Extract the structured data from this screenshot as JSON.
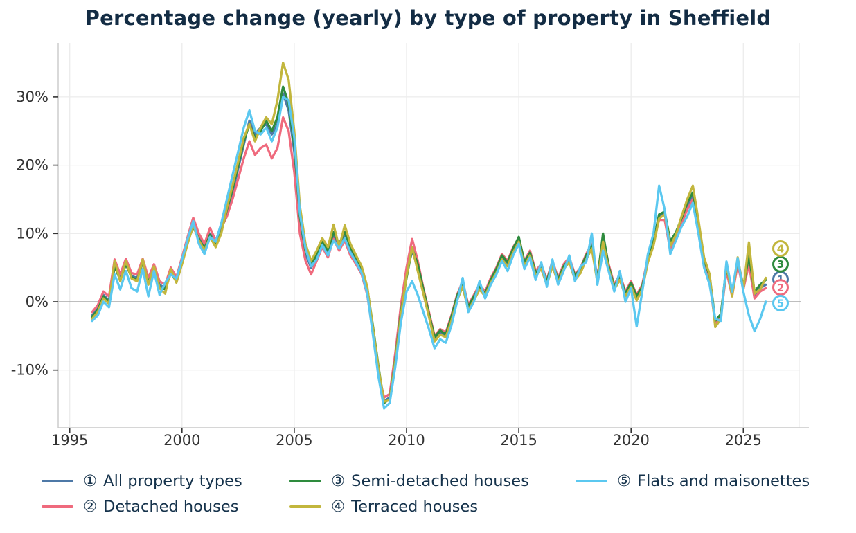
{
  "title": "Percentage change (yearly) by type of property in Sheffield",
  "colors": {
    "title_text": "#132c44",
    "legend_text": "#15324b",
    "tick_text": "#333333",
    "grid": "#ececec",
    "zero_line": "#a8a8a8",
    "spine": "#c9c9c9",
    "tick_mark": "#333333",
    "background": "#ffffff"
  },
  "chart_data": {
    "type": "line",
    "title": "Percentage change (yearly) by type of property in Sheffield",
    "ylabel": "",
    "xlabel": "",
    "unit": "%",
    "grid": "major gridlines only, light gray; darker horizontal line at 0%",
    "legend_position": "bottom",
    "x_start": 1996.0,
    "x_step_years": 0.25,
    "x_end": 2026.0,
    "x_axis": {
      "ticks": [
        1995,
        2000,
        2005,
        2010,
        2015,
        2020,
        2025
      ],
      "range": [
        1994.5,
        2027.6
      ]
    },
    "y_axis": {
      "tick_labels": [
        "30%",
        "20%",
        "10%",
        "0%",
        "-10%"
      ],
      "tick_values": [
        30,
        20,
        10,
        0,
        -10
      ],
      "range": [
        -17.5,
        38
      ]
    },
    "series": [
      {
        "id": "1",
        "glyph": "①",
        "name": "All property types",
        "color": "#4e79a7",
        "end_label_y": 3.3,
        "values": [
          -2.0,
          -1.0,
          1.0,
          0.2,
          5.5,
          3.5,
          5.8,
          3.8,
          3.5,
          6.0,
          3.0,
          5.0,
          2.5,
          2.0,
          4.5,
          3.2,
          6.0,
          9.0,
          11.5,
          9.5,
          8.0,
          10.0,
          8.5,
          10.5,
          13.0,
          16.0,
          19.5,
          23.0,
          26.5,
          24.5,
          25.5,
          26.0,
          24.5,
          26.0,
          30.5,
          28.0,
          22.0,
          12.0,
          7.0,
          5.0,
          6.5,
          8.5,
          7.0,
          9.8,
          8.0,
          9.8,
          7.5,
          6.0,
          4.5,
          1.5,
          -4.0,
          -10.0,
          -14.5,
          -14.0,
          -8.0,
          -1.0,
          4.0,
          7.5,
          5.0,
          1.5,
          -2.0,
          -5.5,
          -4.5,
          -5.0,
          -2.5,
          0.5,
          2.5,
          -1.0,
          0.5,
          2.0,
          1.0,
          3.0,
          4.5,
          6.5,
          5.5,
          7.5,
          9.0,
          5.5,
          7.0,
          4.0,
          5.0,
          2.8,
          5.5,
          3.0,
          5.0,
          6.0,
          3.5,
          4.5,
          6.5,
          8.0,
          3.0,
          9.0,
          5.0,
          2.0,
          3.5,
          1.0,
          2.5,
          0.5,
          2.0,
          6.0,
          8.5,
          12.5,
          13.0,
          8.5,
          10.0,
          12.0,
          14.0,
          15.5,
          11.0,
          6.0,
          3.5,
          -3.0,
          -2.0,
          5.0,
          1.0,
          6.0,
          2.0,
          6.5,
          1.0,
          2.0,
          2.5
        ]
      },
      {
        "id": "2",
        "glyph": "②",
        "name": "Detached houses",
        "color": "#ef6a7d",
        "end_label_y": 2.1,
        "values": [
          -1.5,
          -0.5,
          1.5,
          0.8,
          6.2,
          4.0,
          6.3,
          4.2,
          4.0,
          6.3,
          3.5,
          5.5,
          3.0,
          2.5,
          5.0,
          3.6,
          6.5,
          9.5,
          12.3,
          10.0,
          8.5,
          10.8,
          9.0,
          10.8,
          12.5,
          15.0,
          18.0,
          21.0,
          23.5,
          21.5,
          22.5,
          23.0,
          21.0,
          22.5,
          27.0,
          25.0,
          19.0,
          10.0,
          6.0,
          4.0,
          6.0,
          8.0,
          6.5,
          9.2,
          7.5,
          9.0,
          6.8,
          5.5,
          4.0,
          1.0,
          -4.5,
          -10.5,
          -14.0,
          -13.5,
          -7.5,
          -0.5,
          5.0,
          9.2,
          6.0,
          2.0,
          -1.5,
          -5.0,
          -4.0,
          -4.5,
          -2.0,
          1.0,
          3.0,
          -0.5,
          1.0,
          2.5,
          1.5,
          3.5,
          5.0,
          7.0,
          6.0,
          8.0,
          9.3,
          6.0,
          7.5,
          4.5,
          5.5,
          3.2,
          6.0,
          3.5,
          5.5,
          6.5,
          4.0,
          5.0,
          7.0,
          8.5,
          3.5,
          9.5,
          5.5,
          2.5,
          4.0,
          1.5,
          3.0,
          1.0,
          2.5,
          6.5,
          9.0,
          12.0,
          12.0,
          7.5,
          9.5,
          11.5,
          13.5,
          15.0,
          10.5,
          5.5,
          3.0,
          -3.2,
          -2.2,
          4.5,
          0.8,
          5.5,
          1.8,
          5.5,
          0.5,
          1.5,
          2.0
        ]
      },
      {
        "id": "3",
        "glyph": "③",
        "name": "Semi-detached houses",
        "color": "#2e8b3e",
        "end_label_y": 5.5,
        "values": [
          -2.2,
          -1.2,
          0.8,
          0.0,
          5.2,
          3.2,
          5.5,
          3.6,
          3.2,
          5.8,
          2.8,
          4.8,
          2.2,
          1.8,
          4.2,
          3.0,
          5.8,
          8.8,
          11.0,
          9.2,
          7.8,
          9.8,
          8.2,
          10.2,
          13.5,
          16.5,
          20.0,
          23.5,
          26.0,
          24.0,
          25.0,
          26.5,
          25.0,
          27.0,
          31.5,
          29.0,
          23.0,
          12.5,
          7.5,
          5.5,
          7.0,
          9.0,
          7.5,
          10.2,
          8.5,
          10.2,
          8.0,
          6.5,
          5.0,
          2.0,
          -3.5,
          -9.5,
          -14.8,
          -14.2,
          -8.5,
          -1.5,
          3.5,
          7.8,
          5.5,
          1.8,
          -1.8,
          -5.2,
          -4.2,
          -4.8,
          -2.2,
          0.8,
          2.8,
          -0.8,
          0.8,
          2.2,
          1.2,
          3.2,
          4.8,
          6.8,
          5.8,
          7.8,
          9.5,
          5.8,
          7.2,
          4.2,
          5.2,
          3.0,
          5.8,
          3.2,
          5.2,
          6.2,
          3.8,
          4.8,
          6.8,
          8.2,
          3.2,
          10.0,
          5.2,
          2.2,
          3.8,
          1.2,
          2.8,
          0.8,
          2.2,
          6.2,
          8.8,
          12.8,
          13.2,
          8.8,
          10.2,
          12.2,
          14.5,
          16.0,
          11.5,
          6.2,
          3.8,
          -2.8,
          -1.8,
          5.2,
          1.2,
          6.2,
          2.2,
          6.8,
          1.5,
          2.5,
          3.2
        ]
      },
      {
        "id": "4",
        "glyph": "④",
        "name": "Terraced houses",
        "color": "#c2b63d",
        "end_label_y": 7.8,
        "values": [
          -2.5,
          -1.5,
          0.5,
          -0.3,
          6.0,
          3.0,
          6.0,
          3.4,
          3.0,
          6.2,
          2.5,
          5.2,
          2.0,
          1.2,
          4.8,
          2.8,
          5.5,
          8.5,
          11.2,
          9.0,
          7.5,
          9.5,
          8.0,
          10.0,
          13.8,
          17.0,
          20.5,
          24.0,
          26.0,
          23.5,
          25.5,
          27.0,
          26.0,
          29.5,
          35.0,
          32.5,
          25.0,
          14.0,
          8.5,
          6.0,
          7.5,
          9.3,
          8.0,
          11.3,
          8.0,
          11.2,
          8.5,
          6.8,
          5.2,
          2.2,
          -3.8,
          -9.8,
          -14.6,
          -14.4,
          -8.8,
          -2.0,
          3.8,
          8.0,
          4.5,
          1.2,
          -2.2,
          -5.8,
          -4.8,
          -5.2,
          -2.8,
          0.2,
          2.2,
          -1.2,
          0.2,
          1.8,
          0.8,
          2.8,
          4.2,
          6.2,
          5.2,
          7.2,
          8.8,
          5.2,
          6.8,
          3.8,
          4.8,
          2.5,
          5.2,
          2.8,
          4.8,
          5.8,
          3.2,
          4.2,
          6.2,
          7.8,
          2.8,
          8.8,
          4.8,
          1.8,
          3.2,
          0.8,
          2.2,
          0.2,
          1.8,
          5.8,
          8.2,
          12.2,
          12.8,
          8.2,
          9.8,
          12.5,
          15.0,
          17.0,
          12.0,
          6.5,
          4.0,
          -3.7,
          -2.5,
          5.5,
          0.8,
          6.5,
          1.8,
          8.7,
          1.2,
          1.8,
          3.5
        ]
      },
      {
        "id": "5",
        "glyph": "⑤",
        "name": "Flats and maisonettes",
        "color": "#5bc8f0",
        "end_label_y": -0.2,
        "values": [
          -2.8,
          -2.0,
          0.0,
          -0.8,
          4.0,
          1.8,
          4.5,
          2.0,
          1.5,
          4.8,
          0.8,
          4.5,
          1.0,
          2.8,
          4.0,
          3.4,
          6.2,
          9.2,
          11.8,
          8.5,
          7.0,
          9.5,
          8.8,
          11.5,
          15.0,
          18.5,
          22.0,
          25.5,
          28.0,
          25.0,
          24.5,
          25.5,
          23.5,
          25.5,
          30.0,
          29.5,
          24.0,
          13.0,
          7.8,
          5.2,
          6.2,
          8.3,
          6.8,
          9.0,
          7.8,
          9.3,
          7.2,
          5.8,
          4.2,
          1.2,
          -4.8,
          -11.0,
          -15.6,
          -14.8,
          -9.5,
          -3.0,
          1.5,
          3.0,
          1.0,
          -1.5,
          -4.0,
          -6.8,
          -5.5,
          -6.0,
          -3.5,
          0.0,
          3.5,
          -1.5,
          0.0,
          3.0,
          0.5,
          2.5,
          4.0,
          6.0,
          4.5,
          6.8,
          8.5,
          4.8,
          6.5,
          3.2,
          5.8,
          2.2,
          6.2,
          2.5,
          4.5,
          6.8,
          3.0,
          5.2,
          5.8,
          10.0,
          2.5,
          7.5,
          4.5,
          1.5,
          4.5,
          0.0,
          2.0,
          -3.6,
          1.5,
          7.0,
          10.0,
          17.0,
          13.5,
          7.0,
          9.0,
          11.0,
          12.5,
          14.5,
          10.0,
          5.0,
          2.5,
          -2.5,
          -2.8,
          5.9,
          1.5,
          6.4,
          1.5,
          -2.0,
          -4.3,
          -2.5,
          0.0
        ]
      }
    ]
  }
}
